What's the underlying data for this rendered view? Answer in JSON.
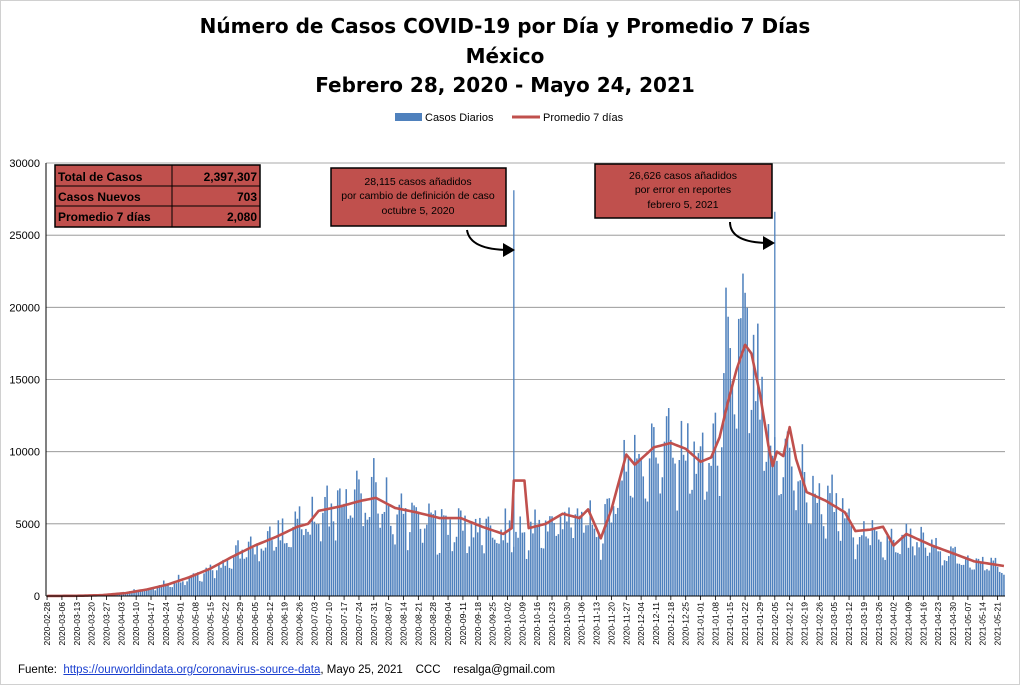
{
  "chart_data": {
    "type": "bar",
    "title": [
      "Número de  Casos  COVID-19 por Día y Promedio 7 Días",
      "México",
      "Febrero 28, 2020 - Mayo 24, 2021"
    ],
    "xlabel": "",
    "ylabel": "",
    "ylim": [
      0,
      30000
    ],
    "yticks": [
      0,
      5000,
      10000,
      15000,
      20000,
      25000,
      30000
    ],
    "grid": "horizontal",
    "legend_position": "top-center",
    "series": [
      {
        "name": "Casos Diarios",
        "type": "bar",
        "color": "#4f81bd"
      },
      {
        "name": "Promedio 7 días",
        "type": "line",
        "color": "#c0504d"
      }
    ],
    "x_start": "2020-02-28",
    "x_end": "2021-05-24",
    "xticks": [
      "2020-02-28",
      "2020-03-06",
      "2020-03-13",
      "2020-03-20",
      "2020-03-27",
      "2020-04-03",
      "2020-04-10",
      "2020-04-17",
      "2020-04-24",
      "2020-05-01",
      "2020-05-08",
      "2020-05-15",
      "2020-05-22",
      "2020-05-29",
      "2020-06-05",
      "2020-06-12",
      "2020-06-19",
      "2020-06-26",
      "2020-07-03",
      "2020-07-10",
      "2020-07-17",
      "2020-07-24",
      "2020-07-31",
      "2020-08-07",
      "2020-08-14",
      "2020-08-21",
      "2020-08-28",
      "2020-09-04",
      "2020-09-11",
      "2020-09-18",
      "2020-09-25",
      "2020-10-02",
      "2020-10-09",
      "2020-10-16",
      "2020-10-23",
      "2020-10-30",
      "2020-11-06",
      "2020-11-13",
      "2020-11-20",
      "2020-11-27",
      "2020-12-04",
      "2020-12-11",
      "2020-12-18",
      "2020-12-25",
      "2021-01-01",
      "2021-01-08",
      "2021-01-15",
      "2021-01-22",
      "2021-01-29",
      "2021-02-05",
      "2021-02-12",
      "2021-02-19",
      "2021-02-26",
      "2021-03-05",
      "2021-03-12",
      "2021-03-19",
      "2021-03-26",
      "2021-04-02",
      "2021-04-09",
      "2021-04-16",
      "2021-04-23",
      "2021-04-30",
      "2021-05-07",
      "2021-05-14",
      "2021-05-21"
    ],
    "daily_anchors": [
      [
        "2020-02-28",
        0
      ],
      [
        "2020-03-15",
        20
      ],
      [
        "2020-03-25",
        80
      ],
      [
        "2020-04-05",
        250
      ],
      [
        "2020-04-15",
        500
      ],
      [
        "2020-04-25",
        900
      ],
      [
        "2020-05-05",
        1400
      ],
      [
        "2020-05-15",
        2000
      ],
      [
        "2020-05-25",
        2800
      ],
      [
        "2020-06-05",
        3600
      ],
      [
        "2020-06-15",
        4300
      ],
      [
        "2020-06-25",
        5000
      ],
      [
        "2020-07-05",
        5800
      ],
      [
        "2020-07-15",
        6500
      ],
      [
        "2020-07-25",
        6800
      ],
      [
        "2020-08-01",
        6700
      ],
      [
        "2020-08-10",
        5800
      ],
      [
        "2020-08-20",
        5500
      ],
      [
        "2020-08-31",
        5100
      ],
      [
        "2020-09-10",
        5000
      ],
      [
        "2020-09-20",
        4600
      ],
      [
        "2020-09-30",
        4400
      ],
      [
        "2020-10-03",
        4500
      ],
      [
        "2020-10-12",
        4400
      ],
      [
        "2020-10-20",
        5000
      ],
      [
        "2020-10-28",
        5600
      ],
      [
        "2020-11-05",
        5400
      ],
      [
        "2020-11-10",
        5700
      ],
      [
        "2020-11-14",
        4000
      ],
      [
        "2020-11-20",
        6500
      ],
      [
        "2020-11-26",
        9500
      ],
      [
        "2020-12-05",
        10000
      ],
      [
        "2020-12-15",
        10600
      ],
      [
        "2020-12-25",
        10300
      ],
      [
        "2021-01-01",
        9400
      ],
      [
        "2021-01-06",
        9600
      ],
      [
        "2021-01-10",
        11500
      ],
      [
        "2021-01-14",
        14500
      ],
      [
        "2021-01-18",
        17500
      ],
      [
        "2021-01-22",
        17500
      ],
      [
        "2021-01-26",
        15500
      ],
      [
        "2021-01-30",
        12500
      ],
      [
        "2021-02-03",
        9500
      ],
      [
        "2021-02-08",
        9600
      ],
      [
        "2021-02-12",
        9500
      ],
      [
        "2021-02-20",
        7500
      ],
      [
        "2021-03-01",
        6600
      ],
      [
        "2021-03-10",
        5600
      ],
      [
        "2021-03-15",
        4500
      ],
      [
        "2021-03-25",
        4600
      ],
      [
        "2021-04-02",
        3500
      ],
      [
        "2021-04-08",
        4300
      ],
      [
        "2021-04-20",
        3500
      ],
      [
        "2021-05-01",
        2800
      ],
      [
        "2021-05-10",
        2400
      ],
      [
        "2021-05-24",
        2000
      ]
    ],
    "daily_outliers": [
      [
        "2020-07-31",
        9556
      ],
      [
        "2021-01-21",
        22339
      ],
      [
        "2021-01-13",
        21366
      ],
      [
        "2021-01-22",
        21007
      ],
      [
        "2021-02-10",
        10900
      ]
    ],
    "avg_anchors": [
      [
        "2020-02-28",
        0
      ],
      [
        "2020-03-15",
        20
      ],
      [
        "2020-03-25",
        60
      ],
      [
        "2020-04-05",
        200
      ],
      [
        "2020-04-15",
        450
      ],
      [
        "2020-04-25",
        800
      ],
      [
        "2020-05-05",
        1300
      ],
      [
        "2020-05-15",
        1900
      ],
      [
        "2020-05-25",
        2700
      ],
      [
        "2020-06-05",
        3500
      ],
      [
        "2020-06-15",
        4100
      ],
      [
        "2020-06-25",
        4800
      ],
      [
        "2020-06-30",
        5000
      ],
      [
        "2020-07-05",
        5900
      ],
      [
        "2020-07-15",
        6200
      ],
      [
        "2020-07-25",
        6600
      ],
      [
        "2020-08-01",
        6800
      ],
      [
        "2020-08-10",
        6100
      ],
      [
        "2020-08-20",
        5800
      ],
      [
        "2020-08-31",
        5400
      ],
      [
        "2020-09-10",
        5400
      ],
      [
        "2020-09-20",
        4800
      ],
      [
        "2020-09-30",
        4300
      ],
      [
        "2020-10-04",
        4700
      ],
      [
        "2020-10-05",
        8000
      ],
      [
        "2020-10-10",
        8000
      ],
      [
        "2020-10-12",
        4700
      ],
      [
        "2020-10-20",
        5000
      ],
      [
        "2020-10-28",
        5700
      ],
      [
        "2020-11-05",
        5400
      ],
      [
        "2020-11-09",
        6000
      ],
      [
        "2020-11-15",
        4000
      ],
      [
        "2020-11-20",
        6000
      ],
      [
        "2020-11-27",
        9800
      ],
      [
        "2020-12-01",
        9100
      ],
      [
        "2020-12-10",
        10300
      ],
      [
        "2020-12-18",
        10600
      ],
      [
        "2020-12-25",
        10200
      ],
      [
        "2021-01-01",
        9300
      ],
      [
        "2021-01-06",
        9600
      ],
      [
        "2021-01-10",
        11000
      ],
      [
        "2021-01-14",
        13500
      ],
      [
        "2021-01-18",
        15700
      ],
      [
        "2021-01-22",
        17400
      ],
      [
        "2021-01-25",
        16800
      ],
      [
        "2021-01-29",
        14000
      ],
      [
        "2021-02-02",
        10400
      ],
      [
        "2021-02-04",
        9000
      ],
      [
        "2021-02-06",
        10000
      ],
      [
        "2021-02-09",
        9700
      ],
      [
        "2021-02-12",
        11700
      ],
      [
        "2021-02-15",
        9500
      ],
      [
        "2021-02-20",
        7200
      ],
      [
        "2021-03-01",
        6600
      ],
      [
        "2021-03-10",
        5800
      ],
      [
        "2021-03-15",
        4500
      ],
      [
        "2021-03-22",
        4600
      ],
      [
        "2021-03-28",
        4800
      ],
      [
        "2021-04-02",
        3500
      ],
      [
        "2021-04-08",
        4300
      ],
      [
        "2021-04-20",
        3500
      ],
      [
        "2021-05-01",
        2900
      ],
      [
        "2021-05-10",
        2400
      ],
      [
        "2021-05-24",
        2080
      ]
    ],
    "spikes": [
      {
        "date": "2020-10-05",
        "value": 28115
      },
      {
        "date": "2021-02-05",
        "value": 26626
      }
    ],
    "annotations": [
      {
        "lines": [
          "28,115 casos  añadidos",
          "por cambio de definición  de caso",
          "octubre  5, 2020"
        ]
      },
      {
        "lines": [
          "26,626 casos  añadidos",
          "por error  en reportes",
          "febrero  5, 2021"
        ]
      }
    ]
  },
  "stats_table": {
    "rows": [
      {
        "label": "Total de Casos",
        "value": "2,397,307"
      },
      {
        "label": "Casos Nuevos",
        "value": "703"
      },
      {
        "label": "Promedio 7 días",
        "value": "2,080"
      }
    ]
  },
  "footer": {
    "prefix": "Fuente:  ",
    "link_text": "https://ourworldindata.org/coronavirus-source-data",
    "suffix": ", Mayo 25, 2021    CCC    resalga@gmail.com"
  }
}
